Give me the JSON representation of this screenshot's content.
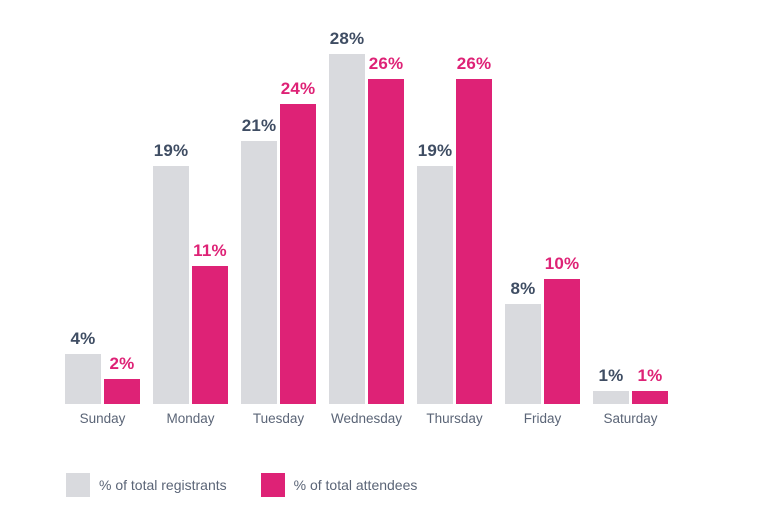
{
  "chart_data": {
    "type": "bar",
    "title": "",
    "xlabel": "",
    "ylabel": "",
    "categories": [
      "Sunday",
      "Monday",
      "Tuesday",
      "Wednesday",
      "Thursday",
      "Friday",
      "Saturday"
    ],
    "series": [
      {
        "name": "% of total registrants",
        "color": "#d9dade",
        "label_color": "#3f4d63",
        "values": [
          4,
          19,
          21,
          28,
          19,
          8,
          1
        ]
      },
      {
        "name": "% of total attendees",
        "color": "#de2276",
        "label_color": "#de2276",
        "values": [
          2,
          11,
          24,
          26,
          26,
          10,
          1
        ]
      }
    ],
    "value_suffix": "%",
    "ylim": [
      0,
      28
    ],
    "grid": false,
    "axes_visible": false,
    "legend_position": "bottom-left",
    "value_labels": [
      "4%",
      "2%",
      "19%",
      "11%",
      "21%",
      "24%",
      "28%",
      "26%",
      "19%",
      "26%",
      "8%",
      "10%",
      "1%",
      "1%"
    ]
  },
  "colors": {
    "background": "#ffffff",
    "axis_text": "#5b6577"
  }
}
